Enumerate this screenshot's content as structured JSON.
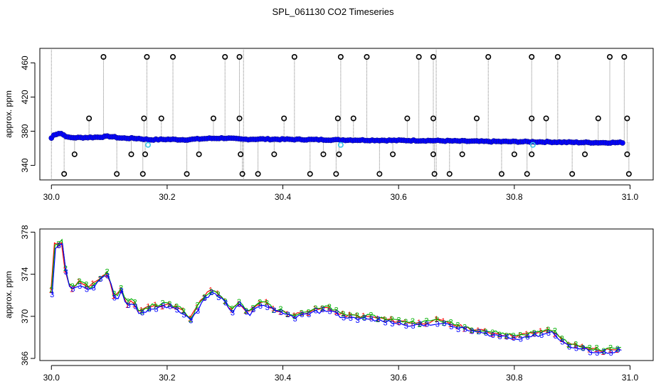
{
  "figure": {
    "title": "SPL_061130  CO2 Timeseries"
  },
  "colors": {
    "point": "#0000ff",
    "outlier": "#000000",
    "flag": "#40c8e8",
    "series1": "#ff0000",
    "series2": "#00b000",
    "series3": "#0000ff",
    "drop_line": "#808080"
  },
  "chart_data": [
    {
      "type": "scatter",
      "title": "",
      "xlabel": "",
      "ylabel": "approx. ppm",
      "xlim": [
        29.98,
        31.04
      ],
      "ylim": [
        323,
        477
      ],
      "xticks": [
        30.0,
        30.2,
        30.4,
        30.6,
        30.8,
        31.0
      ],
      "xtick_labels": [
        "30.0",
        "30.2",
        "30.4",
        "30.6",
        "30.8",
        "31.0"
      ],
      "yticks": [
        340,
        380,
        420,
        460
      ],
      "ytick_labels": [
        "340",
        "380",
        "420",
        "460"
      ],
      "grid": false,
      "series_trend": {
        "x": [
          30.0,
          30.005,
          30.01,
          30.015,
          30.02,
          30.03,
          30.05,
          30.08,
          30.1,
          30.12,
          30.15,
          30.17,
          30.2,
          30.23,
          30.27,
          30.3,
          30.33,
          30.36,
          30.4,
          30.45,
          30.5,
          30.55,
          30.6,
          30.66,
          30.7,
          30.75,
          30.8,
          30.83,
          30.85,
          30.9,
          30.95,
          30.99
        ],
        "y": [
          372,
          376,
          377,
          378,
          376,
          372.5,
          372.5,
          373,
          374,
          372,
          371.5,
          370,
          370.5,
          370,
          371.5,
          372,
          370.5,
          370.8,
          370.5,
          370.2,
          369.8,
          369.5,
          369.2,
          369,
          368.5,
          368,
          367.8,
          367.6,
          367.5,
          367,
          366.6,
          366.8
        ]
      },
      "outliers_high": [
        30.09,
        30.165,
        30.21,
        30.3,
        30.325,
        30.42,
        30.5,
        30.545,
        30.635,
        30.66,
        30.755,
        30.83,
        30.875,
        30.965,
        30.99
      ],
      "outliers_mid": [
        30.065,
        30.16,
        30.19,
        30.28,
        30.325,
        30.402,
        30.495,
        30.522,
        30.615,
        30.66,
        30.735,
        30.83,
        30.855,
        30.945,
        30.995
      ],
      "outliers_low": [
        30.04,
        30.138,
        30.162,
        30.255,
        30.327,
        30.385,
        30.47,
        30.497,
        30.59,
        30.66,
        30.71,
        30.8,
        30.83,
        30.922,
        30.995
      ],
      "outliers_bottom": [
        30.022,
        30.113,
        30.158,
        30.234,
        30.33,
        30.357,
        30.447,
        30.492,
        30.567,
        30.662,
        30.688,
        30.778,
        30.822,
        30.9,
        30.998
      ],
      "flags": [
        30.167,
        30.5,
        30.832
      ]
    },
    {
      "type": "line",
      "title": "",
      "xlabel": "",
      "ylabel": "approx. ppm",
      "xlim": [
        29.98,
        31.04
      ],
      "ylim": [
        365.8,
        378.3
      ],
      "xticks": [
        30.0,
        30.2,
        30.4,
        30.6,
        30.8,
        31.0
      ],
      "xtick_labels": [
        "30.0",
        "30.2",
        "30.4",
        "30.6",
        "30.8",
        "31.0"
      ],
      "yticks": [
        366,
        370,
        374,
        378
      ],
      "ytick_labels": [
        "366",
        "370",
        "374",
        "378"
      ],
      "grid": false,
      "series_markers": [
        "1",
        "2",
        "3"
      ],
      "x": [
        30.0,
        30.005,
        30.01,
        30.015,
        30.02,
        30.025,
        30.035,
        30.05,
        30.065,
        30.08,
        30.095,
        30.1,
        30.11,
        30.12,
        30.13,
        30.14,
        30.15,
        30.17,
        30.2,
        30.225,
        30.24,
        30.26,
        30.275,
        30.29,
        30.31,
        30.325,
        30.34,
        30.355,
        30.37,
        30.385,
        30.4,
        30.42,
        30.45,
        30.48,
        30.5,
        30.55,
        30.6,
        30.64,
        30.665,
        30.7,
        30.74,
        30.8,
        30.84,
        30.865,
        30.885,
        30.9,
        30.95,
        30.99
      ],
      "y": [
        372.3,
        376.5,
        377.5,
        375.5,
        378,
        373.5,
        372.5,
        373.2,
        372.5,
        373.3,
        374,
        373.5,
        371.5,
        372.5,
        371,
        371.5,
        370.3,
        370.8,
        371,
        370.5,
        369.6,
        371.5,
        372.3,
        372,
        370.5,
        371.2,
        370.1,
        371,
        371.2,
        370.5,
        370.3,
        370,
        370.4,
        370.7,
        370,
        369.8,
        369.4,
        369.2,
        369.5,
        369,
        368.5,
        368,
        368.3,
        368.6,
        367.5,
        367.1,
        366.6,
        366.9
      ]
    }
  ]
}
